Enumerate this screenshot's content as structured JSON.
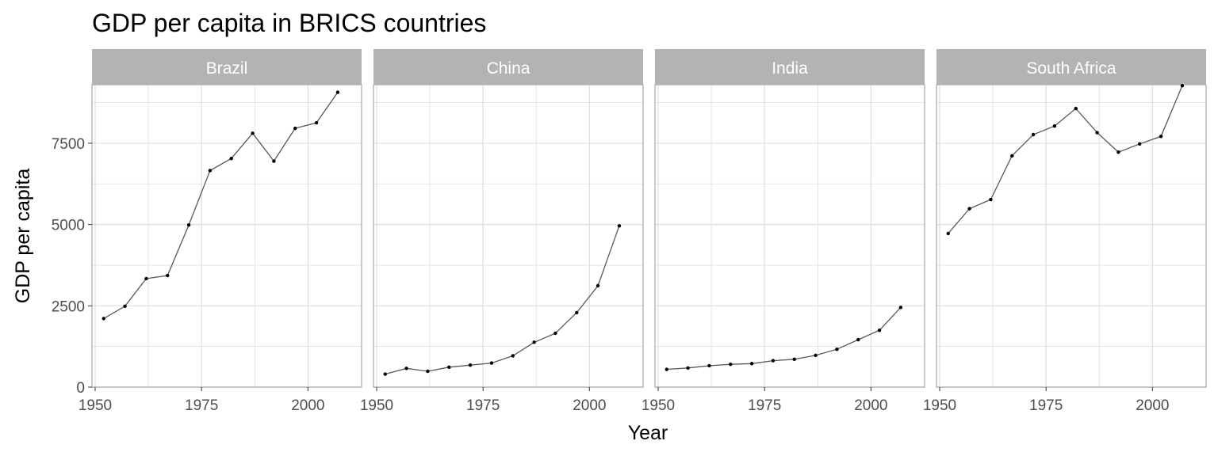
{
  "chart_data": {
    "type": "line",
    "title": "GDP per capita in BRICS countries",
    "xlabel": "Year",
    "ylabel": "GDP per capita",
    "xlim": [
      1950,
      2010
    ],
    "ylim": [
      0,
      9300
    ],
    "x_ticks": [
      1950,
      1975,
      2000
    ],
    "y_ticks": [
      0,
      2500,
      5000,
      7500
    ],
    "grid": true,
    "facets": "columns",
    "x": [
      1952,
      1957,
      1962,
      1967,
      1972,
      1977,
      1982,
      1987,
      1992,
      1997,
      2002,
      2007
    ],
    "series": [
      {
        "name": "Brazil",
        "values": [
          2109,
          2487,
          3337,
          3430,
          4986,
          6660,
          7031,
          7807,
          6950,
          7958,
          8131,
          9066
        ]
      },
      {
        "name": "China",
        "values": [
          400,
          576,
          488,
          613,
          677,
          741,
          962,
          1379,
          1656,
          2289,
          3119,
          4959
        ]
      },
      {
        "name": "India",
        "values": [
          547,
          590,
          658,
          701,
          724,
          813,
          856,
          977,
          1164,
          1459,
          1747,
          2452
        ]
      },
      {
        "name": "South Africa",
        "values": [
          4725,
          5487,
          5769,
          7114,
          7766,
          8029,
          8568,
          7826,
          7226,
          7479,
          7711,
          9270
        ]
      }
    ],
    "colors": {
      "strip": "#b3b3b3",
      "panel_border": "#a6a6a6",
      "grid": "#dedede",
      "line": "#595959",
      "point": "#000000"
    }
  }
}
